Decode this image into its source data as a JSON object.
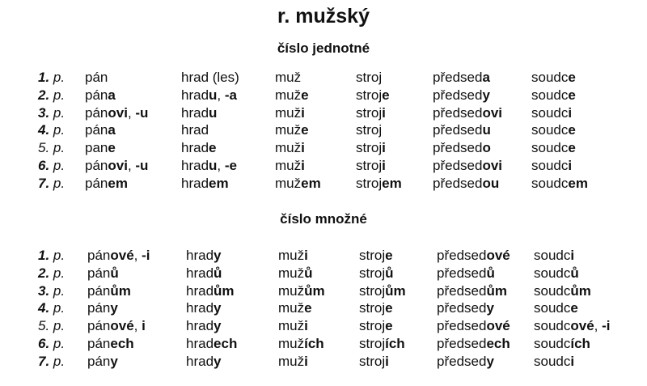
{
  "title": "r. mužský",
  "sections": [
    {
      "heading": "číslo jednotné",
      "rows": [
        {
          "num": "1.",
          "p": "p.",
          "bold": true,
          "cells": [
            [
              "pán"
            ],
            [
              "hrad (les)"
            ],
            [
              "muž"
            ],
            [
              "stroj"
            ],
            [
              "předsed",
              "a"
            ],
            [
              "soudc",
              "e"
            ]
          ]
        },
        {
          "num": "2.",
          "p": "p.",
          "bold": true,
          "cells": [
            [
              "pán",
              "a"
            ],
            [
              "hrad",
              "u",
              ", ",
              "-a"
            ],
            [
              "muž",
              "e"
            ],
            [
              "stroj",
              "e"
            ],
            [
              "předsed",
              "y"
            ],
            [
              "soudc",
              "e"
            ]
          ]
        },
        {
          "num": "3.",
          "p": "p.",
          "bold": true,
          "cells": [
            [
              "pán",
              "ovi",
              ", ",
              "-u"
            ],
            [
              "hrad",
              "u"
            ],
            [
              "muž",
              "i"
            ],
            [
              "stroj",
              "i"
            ],
            [
              "předsed",
              "ovi"
            ],
            [
              "soudc",
              "i"
            ]
          ]
        },
        {
          "num": "4.",
          "p": "p.",
          "bold": true,
          "cells": [
            [
              "pán",
              "a"
            ],
            [
              "hrad"
            ],
            [
              "muž",
              "e"
            ],
            [
              "stroj"
            ],
            [
              "předsed",
              "u"
            ],
            [
              "soudc",
              "e"
            ]
          ]
        },
        {
          "num": "5.",
          "p": "p.",
          "bold": false,
          "cells": [
            [
              "pan",
              "e"
            ],
            [
              "hrad",
              "e"
            ],
            [
              "muž",
              "i"
            ],
            [
              "stroj",
              "i"
            ],
            [
              "předsed",
              "o"
            ],
            [
              "soudc",
              "e"
            ]
          ]
        },
        {
          "num": "6.",
          "p": "p.",
          "bold": true,
          "cells": [
            [
              "pán",
              "ovi",
              ", ",
              "-u"
            ],
            [
              "hrad",
              "u",
              ", ",
              "-e"
            ],
            [
              "muž",
              "i"
            ],
            [
              "stroj",
              "i"
            ],
            [
              "předsed",
              "ovi"
            ],
            [
              "soudc",
              "i"
            ]
          ]
        },
        {
          "num": "7.",
          "p": "p.",
          "bold": true,
          "cells": [
            [
              "pán",
              "em"
            ],
            [
              "hrad",
              "em"
            ],
            [
              "muž",
              "em"
            ],
            [
              "stroj",
              "em"
            ],
            [
              "předsed",
              "ou"
            ],
            [
              "soudc",
              "em"
            ]
          ]
        }
      ]
    },
    {
      "heading": "číslo množné",
      "rows": [
        {
          "num": "1.",
          "p": "p.",
          "bold": true,
          "cells": [
            [
              "pán",
              "ové",
              ", ",
              "-i"
            ],
            [
              "hrad",
              "y"
            ],
            [
              "muž",
              "i"
            ],
            [
              "stroj",
              "e"
            ],
            [
              "předsed",
              "ové"
            ],
            [
              "soudc",
              "i"
            ]
          ]
        },
        {
          "num": "2.",
          "p": "p.",
          "bold": true,
          "cells": [
            [
              "pán",
              "ů"
            ],
            [
              "hrad",
              "ů"
            ],
            [
              "muž",
              "ů"
            ],
            [
              "stroj",
              "ů"
            ],
            [
              "předsed",
              "ů"
            ],
            [
              "soudc",
              "ů"
            ]
          ]
        },
        {
          "num": "3.",
          "p": "p.",
          "bold": true,
          "cells": [
            [
              "pán",
              "ům"
            ],
            [
              "hrad",
              "ům"
            ],
            [
              "muž",
              "ům"
            ],
            [
              "stroj",
              "ům"
            ],
            [
              "předsed",
              "ům"
            ],
            [
              "soudc",
              "ům"
            ]
          ]
        },
        {
          "num": "4.",
          "p": "p.",
          "bold": true,
          "cells": [
            [
              "pán",
              "y"
            ],
            [
              "hrad",
              "y"
            ],
            [
              "muž",
              "e"
            ],
            [
              "stroj",
              "e"
            ],
            [
              "předsed",
              "y"
            ],
            [
              "soudc",
              "e"
            ]
          ]
        },
        {
          "num": "5.",
          "p": "p.",
          "bold": false,
          "cells": [
            [
              "pán",
              "ové",
              ", ",
              "i"
            ],
            [
              "hrad",
              "y"
            ],
            [
              "muž",
              "i"
            ],
            [
              "stroj",
              "e"
            ],
            [
              "předsed",
              "ové"
            ],
            [
              "soudc",
              "ové",
              ", ",
              "-i"
            ]
          ]
        },
        {
          "num": "6.",
          "p": "p.",
          "bold": true,
          "cells": [
            [
              "pán",
              "ech"
            ],
            [
              "hrad",
              "ech"
            ],
            [
              "muž",
              "ích"
            ],
            [
              "stroj",
              "ích"
            ],
            [
              "předsed",
              "ech"
            ],
            [
              "soudc",
              "ích"
            ]
          ]
        },
        {
          "num": "7.",
          "p": "p.",
          "bold": true,
          "cells": [
            [
              "pán",
              "y"
            ],
            [
              "hrad",
              "y"
            ],
            [
              "muž",
              "i"
            ],
            [
              "stroj",
              "i"
            ],
            [
              "předsed",
              "y"
            ],
            [
              "soudc",
              "i"
            ]
          ]
        }
      ]
    }
  ]
}
